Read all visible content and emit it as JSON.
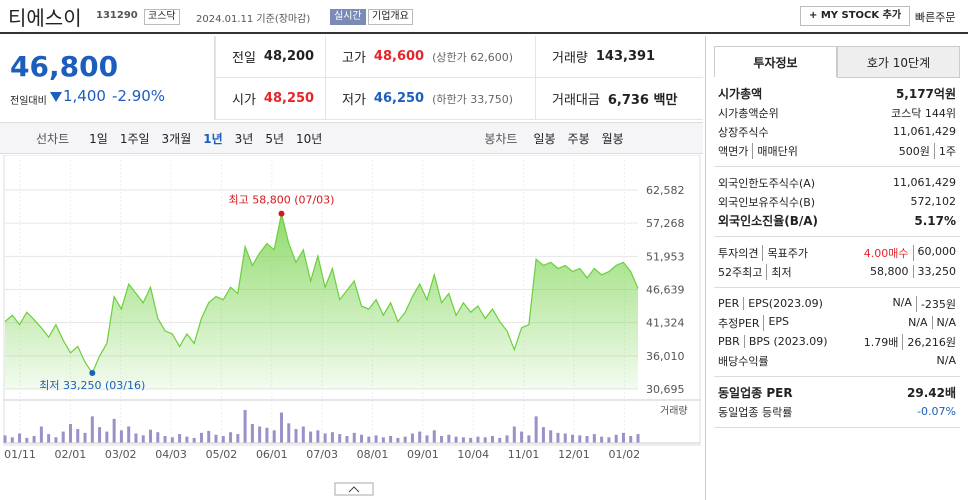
{
  "header": {
    "name": "티에스이",
    "code": "131290",
    "market": "코스닥",
    "date": "2024.01.11 기준(장마감)",
    "realtime": "실시간",
    "overview": "기업개요",
    "mystock": "+ MY STOCK 추가",
    "quick_order": "빠른주문"
  },
  "price": {
    "now": "46,800",
    "diff_label": "전일대비",
    "diff": "1,400",
    "rate": "-2.90%"
  },
  "quote": [
    {
      "label": "전일",
      "value": "48,200",
      "color": "#222"
    },
    {
      "label": "고가",
      "value": "48,600",
      "extra": "(상한가 62,600)",
      "color": "#e3262b"
    },
    {
      "label": "거래량",
      "value": "143,391",
      "color": "#222"
    },
    {
      "label": "시가",
      "value": "48,250",
      "color": "#e3262b"
    },
    {
      "label": "저가",
      "value": "46,250",
      "extra": "(하한가 33,750)",
      "color": "#1d5ebd"
    },
    {
      "label": "거래대금",
      "value": "6,736 백만",
      "color": "#222"
    }
  ],
  "tabs": {
    "line_label": "선차트",
    "line": [
      "1일",
      "1주일",
      "3개월",
      "1년",
      "3년",
      "5년",
      "10년"
    ],
    "active": 3,
    "candle_label": "봉차트",
    "candle": [
      "일봉",
      "주봉",
      "월봉"
    ]
  },
  "chart_data": {
    "type": "area",
    "color": "#6bcf3c",
    "ylim": [
      30695,
      62582
    ],
    "yticks": [
      {
        "value": 62582,
        "label": "62,582"
      },
      {
        "value": 57268,
        "label": "57,268"
      },
      {
        "value": 51953,
        "label": "51,953"
      },
      {
        "value": 46639,
        "label": "46,639"
      },
      {
        "value": 41324,
        "label": "41,324"
      },
      {
        "value": 36010,
        "label": "36,010"
      },
      {
        "value": 30695,
        "label": "30,695"
      }
    ],
    "xlabels": [
      "01/11",
      "02/01",
      "03/02",
      "04/03",
      "05/02",
      "06/01",
      "07/03",
      "08/01",
      "09/01",
      "10/04",
      "11/01",
      "12/01",
      "01/02"
    ],
    "values": [
      41500,
      42500,
      41000,
      43000,
      41800,
      40500,
      39000,
      41000,
      38500,
      36500,
      37500,
      35000,
      33250,
      36000,
      38000,
      45500,
      43500,
      47500,
      46000,
      44500,
      47000,
      42000,
      40000,
      39500,
      37500,
      39500,
      38000,
      42000,
      44500,
      45500,
      45000,
      47000,
      46000,
      53500,
      50500,
      52500,
      54000,
      53000,
      58800,
      54000,
      51000,
      53000,
      48000,
      52000,
      47000,
      50000,
      45000,
      46500,
      48000,
      44000,
      43500,
      45000,
      42500,
      44500,
      41500,
      43000,
      45500,
      47500,
      45000,
      49000,
      44500,
      46000,
      42500,
      44500,
      43000,
      44000,
      42000,
      43500,
      41500,
      40000,
      37000,
      40500,
      41000,
      51500,
      50500,
      51000,
      50000,
      50500,
      49500,
      50000,
      48500,
      50000,
      49000,
      49500,
      50500,
      51000,
      49500,
      46800
    ],
    "high": {
      "index": 38,
      "label": "최고 58,800 (07/03)"
    },
    "low": {
      "index": 12,
      "label": "최저 33,250 (03/16)"
    },
    "volume_label": "거래량",
    "volume_color": "#9d8fc7",
    "volume": [
      120000,
      90000,
      150000,
      80000,
      110000,
      260000,
      140000,
      90000,
      180000,
      300000,
      220000,
      160000,
      420000,
      250000,
      180000,
      380000,
      200000,
      260000,
      150000,
      120000,
      210000,
      170000,
      110000,
      90000,
      140000,
      100000,
      80000,
      160000,
      190000,
      130000,
      110000,
      170000,
      140000,
      520000,
      300000,
      260000,
      240000,
      200000,
      480000,
      310000,
      220000,
      260000,
      180000,
      200000,
      150000,
      170000,
      140000,
      110000,
      160000,
      130000,
      100000,
      120000,
      90000,
      110000,
      80000,
      100000,
      150000,
      180000,
      120000,
      200000,
      110000,
      130000,
      100000,
      90000,
      80000,
      100000,
      90000,
      110000,
      80000,
      120000,
      260000,
      180000,
      120000,
      420000,
      250000,
      200000,
      160000,
      150000,
      130000,
      120000,
      110000,
      140000,
      100000,
      90000,
      130000,
      160000,
      110000,
      140000
    ]
  },
  "info": {
    "tabs": [
      "투자정보",
      "호가 10단계"
    ],
    "groups": [
      [
        {
          "label": [
            "시가총액"
          ],
          "value": [
            "5,177억원"
          ],
          "bold": true
        },
        {
          "label": [
            "시가총액순위"
          ],
          "value": [
            "코스닥 144위"
          ]
        },
        {
          "label": [
            "상장주식수"
          ],
          "value": [
            "11,061,429"
          ]
        },
        {
          "label": [
            "액면가",
            "매매단위"
          ],
          "value": [
            "500원",
            "1주"
          ]
        }
      ],
      [
        {
          "label": [
            "외국인한도주식수(A)"
          ],
          "value": [
            "11,061,429"
          ]
        },
        {
          "label": [
            "외국인보유주식수(B)"
          ],
          "value": [
            "572,102"
          ]
        },
        {
          "label": [
            "외국인소진율(B/A)"
          ],
          "value": [
            "5.17%"
          ],
          "bold": true
        }
      ],
      [
        {
          "label": [
            "투자의견",
            "목표주가"
          ],
          "value": [
            "4.00매수",
            "60,000"
          ],
          "red": 0
        },
        {
          "label": [
            "52주최고",
            "최저"
          ],
          "value": [
            "58,800",
            "33,250"
          ]
        }
      ],
      [
        {
          "label": [
            "PER",
            "EPS(2023.09)"
          ],
          "value": [
            "N/A",
            "-235원"
          ]
        },
        {
          "label": [
            "추정PER",
            "EPS"
          ],
          "value": [
            "N/A",
            "N/A"
          ]
        },
        {
          "label": [
            "PBR",
            "BPS (2023.09)"
          ],
          "value": [
            "1.79배",
            "26,216원"
          ]
        },
        {
          "label": [
            "배당수익률"
          ],
          "value": [
            "N/A"
          ]
        }
      ],
      [
        {
          "label": [
            "동일업종 PER"
          ],
          "value": [
            "29.42배"
          ],
          "bold": true
        },
        {
          "label": [
            "동일업종 등락률"
          ],
          "value": [
            "-0.07%"
          ],
          "blue": true
        }
      ]
    ]
  }
}
